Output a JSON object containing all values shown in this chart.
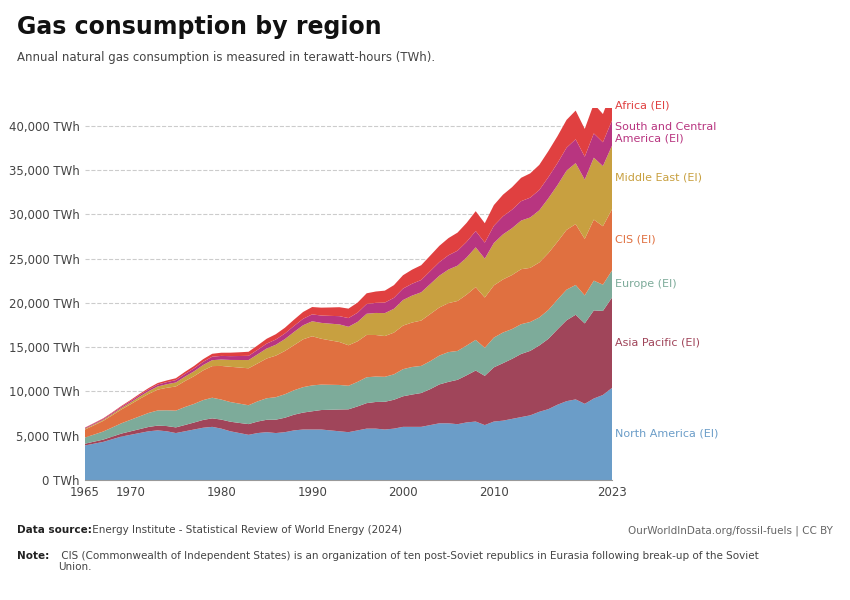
{
  "title": "Gas consumption by region",
  "subtitle": "Annual natural gas consumption is measured in terawatt-hours (TWh).",
  "datasource_bold": "Data source:",
  "datasource_rest": " Energy Institute - Statistical Review of World Energy (2024)",
  "note_bold": "Note:",
  "note_rest": " CIS (Commonwealth of Independent States) is an organization of ten post-Soviet republics in Eurasia following break-up of the Soviet\nUnion.",
  "url": "OurWorldInData.org/fossil-fuels | CC BY",
  "years": [
    1965,
    1966,
    1967,
    1968,
    1969,
    1970,
    1971,
    1972,
    1973,
    1974,
    1975,
    1976,
    1977,
    1978,
    1979,
    1980,
    1981,
    1982,
    1983,
    1984,
    1985,
    1986,
    1987,
    1988,
    1989,
    1990,
    1991,
    1992,
    1993,
    1994,
    1995,
    1996,
    1997,
    1998,
    1999,
    2000,
    2001,
    2002,
    2003,
    2004,
    2005,
    2006,
    2007,
    2008,
    2009,
    2010,
    2011,
    2012,
    2013,
    2014,
    2015,
    2016,
    2017,
    2018,
    2019,
    2020,
    2021,
    2022,
    2023
  ],
  "regions_order": [
    "North America (EI)",
    "Asia Pacific (EI)",
    "Europe (EI)",
    "CIS (EI)",
    "Middle East (EI)",
    "South and Central America (EI)",
    "Africa (EI)"
  ],
  "region_colors": {
    "North America (EI)": "#6b9dc8",
    "Asia Pacific (EI)": "#a0455a",
    "Europe (EI)": "#7dab9a",
    "CIS (EI)": "#e07040",
    "Middle East (EI)": "#c8a040",
    "South and Central America (EI)": "#b83580",
    "Africa (EI)": "#e04040"
  },
  "region_label_names": {
    "North America (EI)": "North America (EI)",
    "Asia Pacific (EI)": "Asia Pacific (EI)",
    "Europe (EI)": "Europe (EI)",
    "CIS (EI)": "CIS (EI)",
    "Middle East (EI)": "Middle East (EI)",
    "South and Central America (EI)": "South and Central\nAmerica (EI)",
    "Africa (EI)": "Africa (EI)"
  },
  "values": {
    "North America (EI)": [
      3900,
      4100,
      4300,
      4600,
      4900,
      5100,
      5300,
      5500,
      5600,
      5500,
      5300,
      5500,
      5700,
      5900,
      6000,
      5800,
      5500,
      5300,
      5100,
      5300,
      5400,
      5300,
      5400,
      5600,
      5700,
      5700,
      5700,
      5600,
      5500,
      5400,
      5600,
      5800,
      5800,
      5700,
      5800,
      6000,
      6000,
      6000,
      6200,
      6400,
      6400,
      6300,
      6500,
      6600,
      6200,
      6600,
      6700,
      6900,
      7100,
      7300,
      7700,
      8000,
      8500,
      8900,
      9100,
      8600,
      9200,
      9600,
      10400
    ],
    "Asia Pacific (EI)": [
      200,
      230,
      260,
      300,
      340,
      390,
      440,
      490,
      540,
      590,
      640,
      710,
      790,
      880,
      960,
      1020,
      1080,
      1140,
      1210,
      1300,
      1400,
      1510,
      1630,
      1770,
      1910,
      2060,
      2200,
      2330,
      2460,
      2580,
      2710,
      2880,
      3010,
      3130,
      3260,
      3450,
      3650,
      3820,
      4060,
      4390,
      4680,
      5010,
      5320,
      5760,
      5560,
      6120,
      6490,
      6780,
      7130,
      7280,
      7490,
      7940,
      8510,
      9130,
      9560,
      9080,
      9950,
      9490,
      10200
    ],
    "Europe (EI)": [
      700,
      800,
      910,
      1030,
      1160,
      1300,
      1440,
      1580,
      1710,
      1780,
      1890,
      2030,
      2100,
      2240,
      2330,
      2260,
      2220,
      2180,
      2130,
      2280,
      2430,
      2540,
      2650,
      2760,
      2870,
      2920,
      2870,
      2820,
      2770,
      2660,
      2770,
      2920,
      2870,
      2820,
      2870,
      3060,
      3110,
      3060,
      3160,
      3260,
      3360,
      3260,
      3360,
      3460,
      3160,
      3360,
      3460,
      3360,
      3360,
      3260,
      3160,
      3260,
      3360,
      3460,
      3360,
      3160,
      3360,
      2960,
      3060
    ],
    "CIS (EI)": [
      900,
      1050,
      1200,
      1380,
      1560,
      1750,
      1970,
      2150,
      2350,
      2540,
      2730,
      2930,
      3130,
      3350,
      3570,
      3800,
      3980,
      4080,
      4170,
      4280,
      4490,
      4690,
      4890,
      5090,
      5400,
      5550,
      5180,
      5010,
      4850,
      4570,
      4580,
      4780,
      4690,
      4600,
      4710,
      4920,
      5020,
      5120,
      5320,
      5430,
      5530,
      5640,
      5750,
      5960,
      5680,
      5890,
      5990,
      6100,
      6210,
      6110,
      6210,
      6420,
      6530,
      6750,
      6870,
      6380,
      6890,
      6600,
      6900
    ],
    "Middle East (EI)": [
      90,
      105,
      120,
      140,
      170,
      210,
      260,
      310,
      360,
      400,
      450,
      500,
      550,
      610,
      670,
      720,
      775,
      850,
      930,
      1030,
      1130,
      1230,
      1340,
      1490,
      1590,
      1690,
      1790,
      1890,
      1990,
      2090,
      2190,
      2390,
      2490,
      2590,
      2690,
      2890,
      3040,
      3190,
      3390,
      3590,
      3790,
      3990,
      4190,
      4490,
      4390,
      4790,
      5090,
      5290,
      5490,
      5690,
      5890,
      6190,
      6390,
      6690,
      6890,
      6690,
      6990,
      6790,
      7190
    ],
    "South and Central America (EI)": [
      90,
      100,
      110,
      120,
      140,
      160,
      180,
      200,
      220,
      240,
      270,
      300,
      330,
      360,
      390,
      410,
      430,
      450,
      480,
      510,
      550,
      590,
      630,
      680,
      730,
      780,
      830,
      880,
      930,
      980,
      1040,
      1100,
      1140,
      1190,
      1240,
      1290,
      1340,
      1390,
      1460,
      1530,
      1610,
      1690,
      1770,
      1840,
      1810,
      1940,
      2040,
      2090,
      2190,
      2240,
      2290,
      2390,
      2490,
      2590,
      2690,
      2590,
      2740,
      2690,
      2840
    ],
    "Africa (EI)": [
      40,
      50,
      60,
      70,
      90,
      110,
      130,
      150,
      170,
      190,
      210,
      240,
      270,
      300,
      330,
      360,
      390,
      420,
      460,
      500,
      550,
      600,
      650,
      710,
      770,
      830,
      890,
      950,
      1010,
      1070,
      1140,
      1210,
      1280,
      1350,
      1430,
      1510,
      1590,
      1670,
      1750,
      1840,
      1940,
      2040,
      2140,
      2240,
      2190,
      2340,
      2440,
      2540,
      2640,
      2740,
      2840,
      2940,
      3040,
      3140,
      3240,
      3140,
      3340,
      3190,
      3390
    ]
  },
  "ylim": [
    0,
    42000
  ],
  "yticks": [
    0,
    5000,
    10000,
    15000,
    20000,
    25000,
    30000,
    35000,
    40000
  ],
  "xticks": [
    1965,
    1970,
    1980,
    1990,
    2000,
    2010,
    2023
  ],
  "logo_bg": "#1c3a5c",
  "logo_red": "#cc2233"
}
